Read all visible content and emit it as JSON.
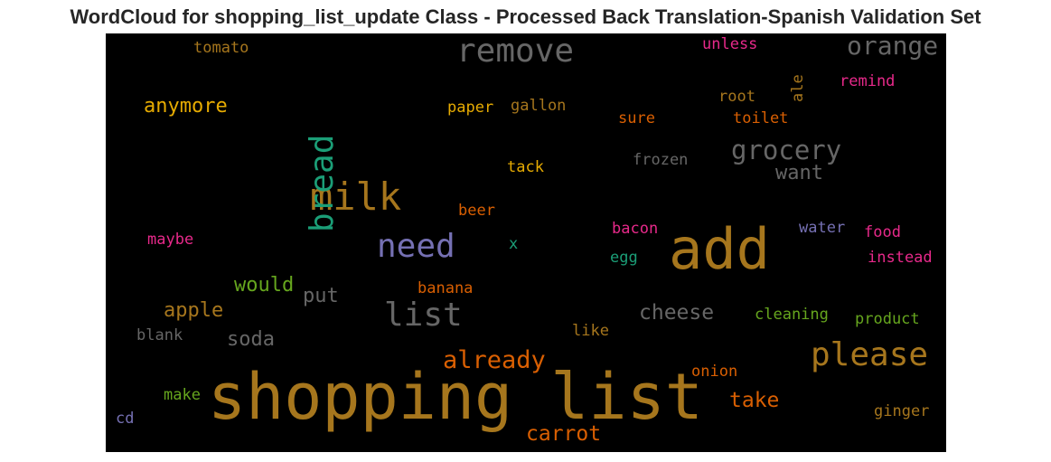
{
  "chart_data": {
    "type": "wordcloud",
    "title": "WordCloud for shopping_list_update Class - Processed Back Translation-Spanish Validation Set",
    "background": "#000000",
    "words": [
      {
        "text": "shopping list",
        "color": "#a6761d"
      },
      {
        "text": "add",
        "color": "#a6761d"
      },
      {
        "text": "milk",
        "color": "#a6761d"
      },
      {
        "text": "need",
        "color": "#7570b3"
      },
      {
        "text": "please",
        "color": "#a6761d"
      },
      {
        "text": "remove",
        "color": "#666666"
      },
      {
        "text": "list",
        "color": "#666666"
      },
      {
        "text": "bread",
        "color": "#1b9e77"
      },
      {
        "text": "grocery",
        "color": "#666666"
      },
      {
        "text": "orange",
        "color": "#666666"
      },
      {
        "text": "already",
        "color": "#d95f02"
      },
      {
        "text": "cheese",
        "color": "#666666"
      },
      {
        "text": "carrot",
        "color": "#d95f02"
      },
      {
        "text": "take",
        "color": "#d95f02"
      },
      {
        "text": "anymore",
        "color": "#e6ab02"
      },
      {
        "text": "would",
        "color": "#66a61e"
      },
      {
        "text": "apple",
        "color": "#a6761d"
      },
      {
        "text": "put",
        "color": "#666666"
      },
      {
        "text": "soda",
        "color": "#666666"
      },
      {
        "text": "want",
        "color": "#666666"
      },
      {
        "text": "tomato",
        "color": "#a6761d"
      },
      {
        "text": "unless",
        "color": "#e7298a"
      },
      {
        "text": "ale",
        "color": "#a6761d"
      },
      {
        "text": "remind",
        "color": "#e7298a"
      },
      {
        "text": "root",
        "color": "#a6761d"
      },
      {
        "text": "toilet",
        "color": "#d95f02"
      },
      {
        "text": "paper",
        "color": "#e6ab02"
      },
      {
        "text": "gallon",
        "color": "#a6761d"
      },
      {
        "text": "sure",
        "color": "#d95f02"
      },
      {
        "text": "frozen",
        "color": "#666666"
      },
      {
        "text": "tack",
        "color": "#e6ab02"
      },
      {
        "text": "beer",
        "color": "#d95f02"
      },
      {
        "text": "maybe",
        "color": "#e7298a"
      },
      {
        "text": "x",
        "color": "#1b9e77"
      },
      {
        "text": "bacon",
        "color": "#e7298a"
      },
      {
        "text": "water",
        "color": "#7570b3"
      },
      {
        "text": "food",
        "color": "#e7298a"
      },
      {
        "text": "egg",
        "color": "#1b9e77"
      },
      {
        "text": "instead",
        "color": "#e7298a"
      },
      {
        "text": "banana",
        "color": "#d95f02"
      },
      {
        "text": "cleaning",
        "color": "#66a61e"
      },
      {
        "text": "product",
        "color": "#66a61e"
      },
      {
        "text": "blank",
        "color": "#666666"
      },
      {
        "text": "like",
        "color": "#a6761d"
      },
      {
        "text": "onion",
        "color": "#d95f02"
      },
      {
        "text": "make",
        "color": "#66a61e"
      },
      {
        "text": "cd",
        "color": "#7570b3"
      },
      {
        "text": "ginger",
        "color": "#a6761d"
      }
    ]
  }
}
